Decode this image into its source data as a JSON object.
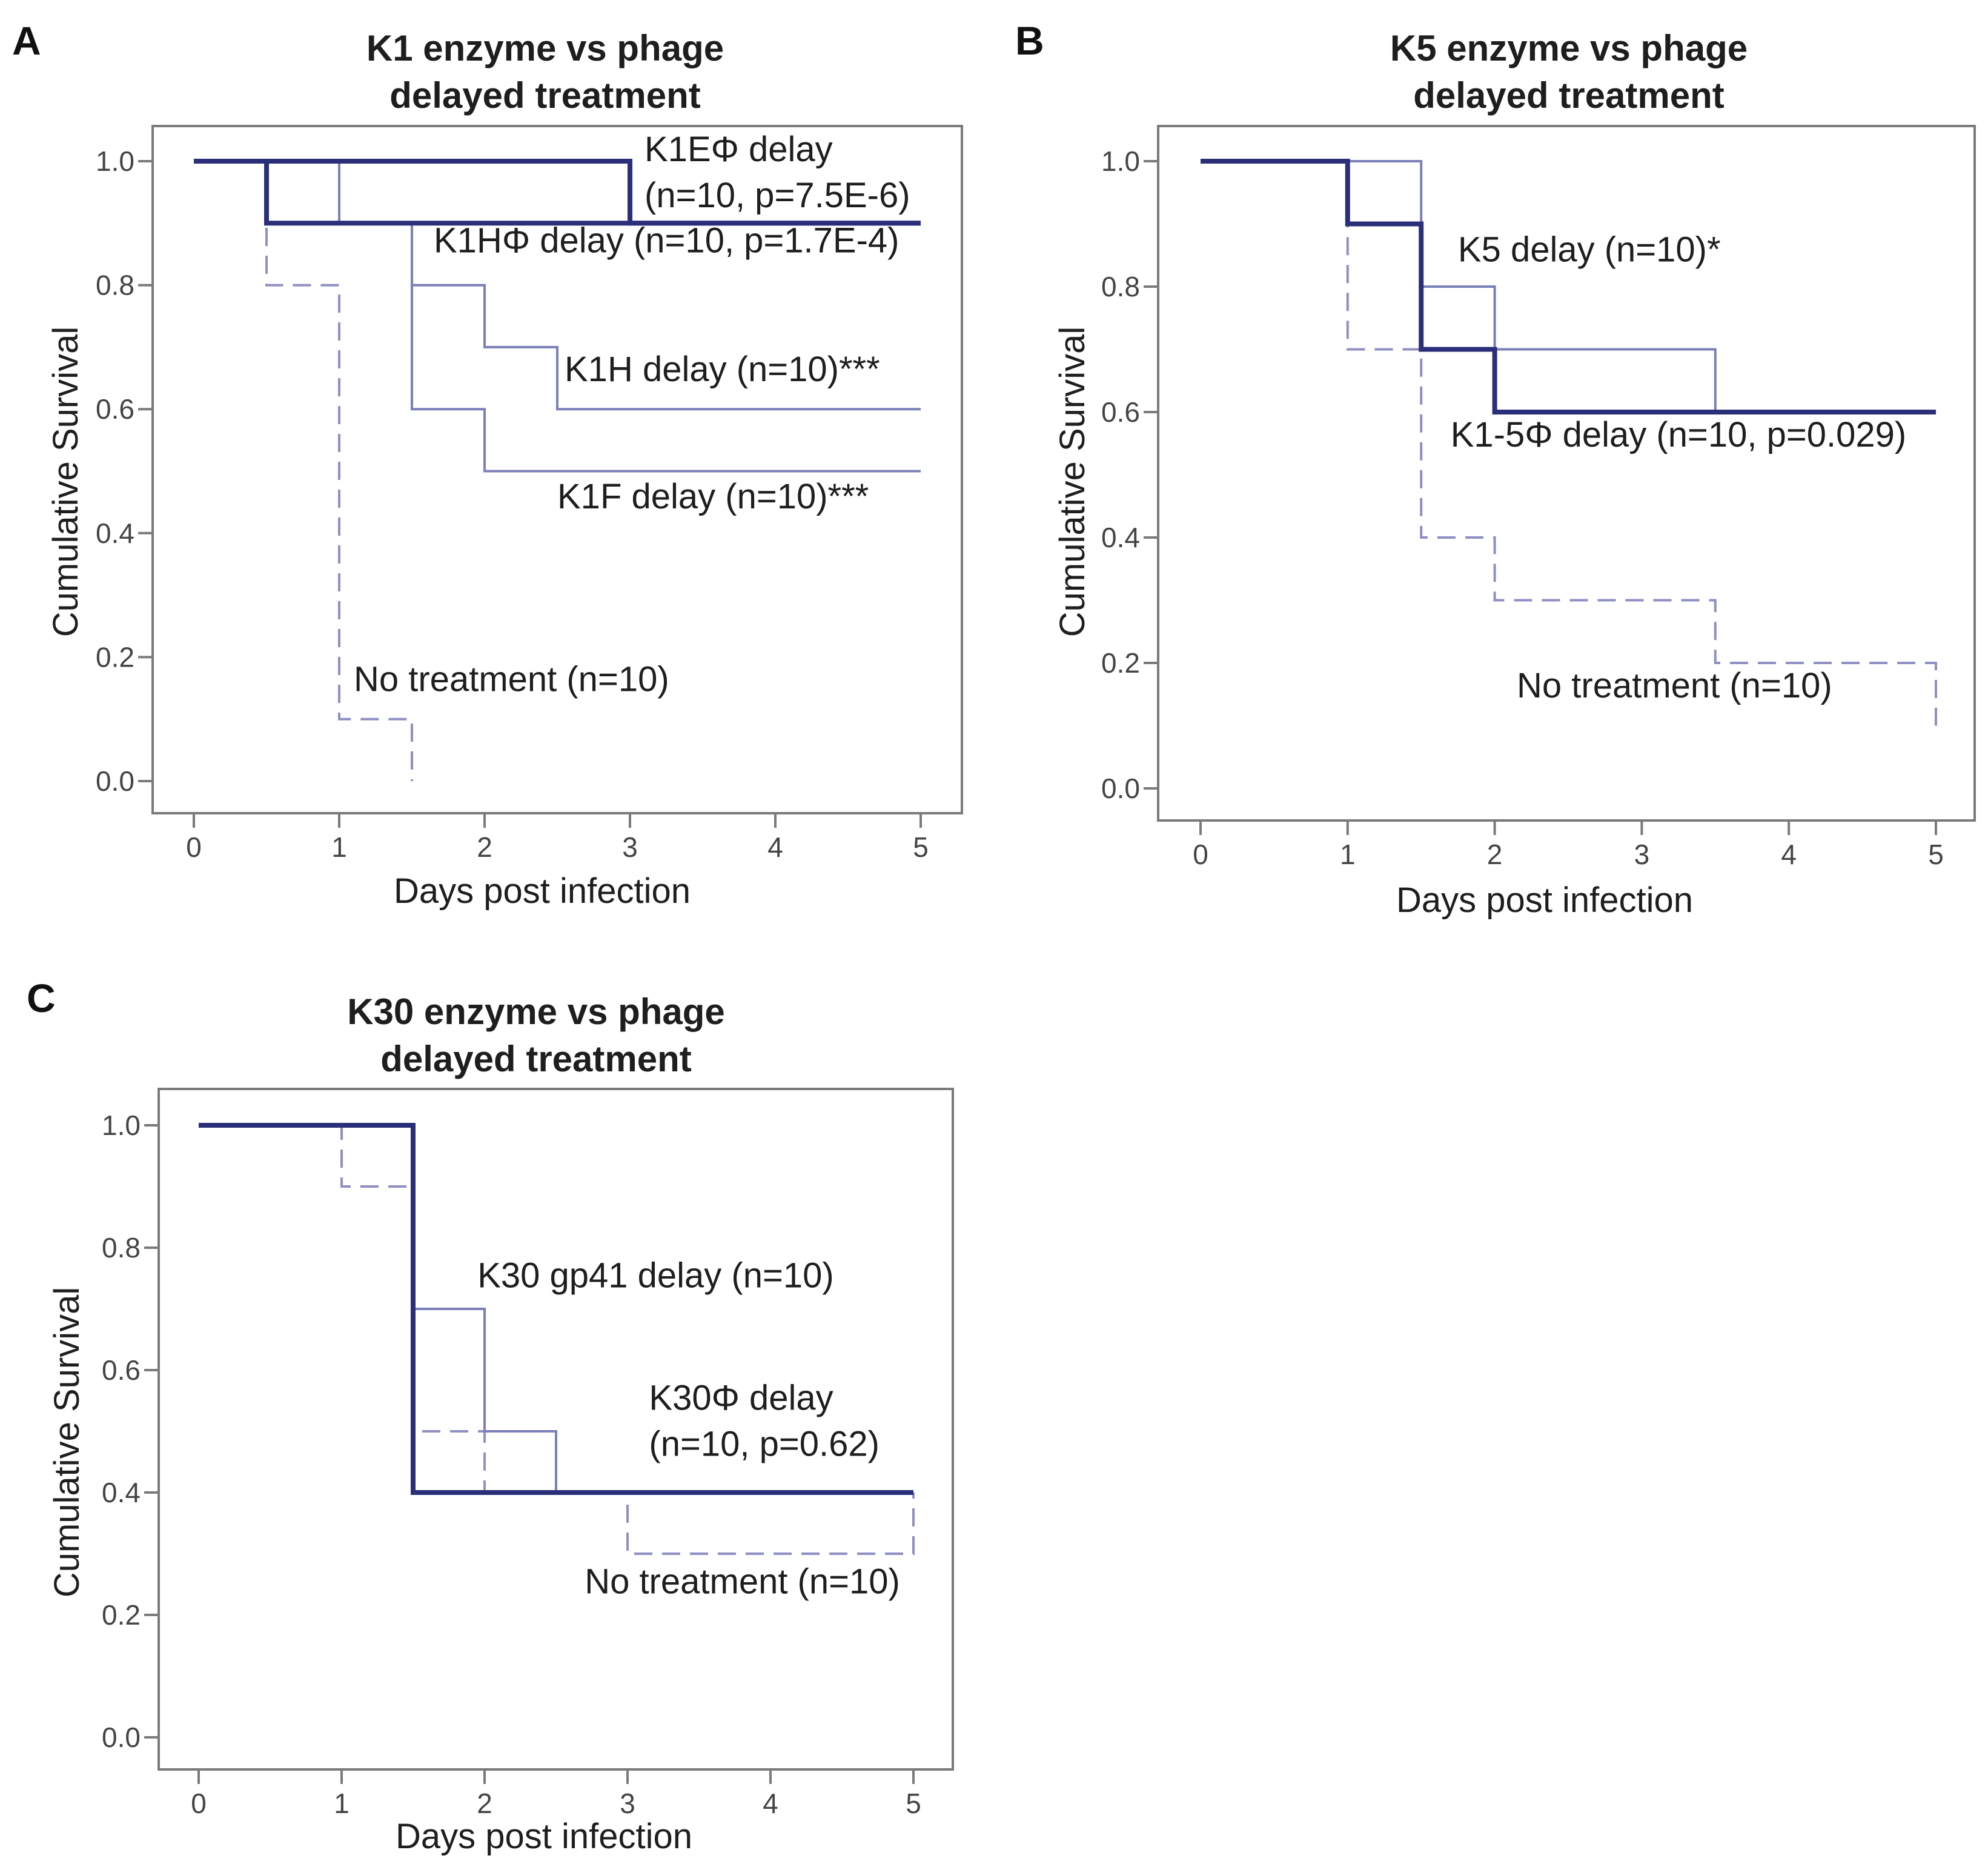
{
  "figure": {
    "panels": [
      {
        "letter": "A"
      },
      {
        "letter": "B"
      },
      {
        "letter": "C"
      }
    ]
  },
  "colors": {
    "strong": "#2b2f7a",
    "light": "#7b7fb8",
    "dashed": "#8e8fc2",
    "axis": "#7a7a7a",
    "text": "#1e1e1e"
  },
  "chart_data": [
    {
      "type": "line",
      "subtype": "kaplan-meier step",
      "title": [
        "K1 enzyme vs phage",
        "delayed treatment"
      ],
      "xlabel": "Days post infection",
      "ylabel": "Cumulative  Survival",
      "xlim": [
        0,
        5
      ],
      "ylim": [
        0,
        1
      ],
      "xticks": [
        "0",
        "1",
        "2",
        "3",
        "4",
        "5"
      ],
      "yticks": [
        "0.0",
        "0.2",
        "0.4",
        "0.6",
        "0.8",
        "1.0"
      ],
      "series": [
        {
          "name": "No treatment",
          "style": "dashed",
          "points": [
            [
              0,
              1
            ],
            [
              0.5,
              1
            ],
            [
              0.5,
              0.8
            ],
            [
              1,
              0.8
            ],
            [
              1,
              0.1
            ],
            [
              1.5,
              0.1
            ],
            [
              1.5,
              0
            ]
          ]
        },
        {
          "name": "K1F delay",
          "style": "light",
          "points": [
            [
              0,
              1
            ],
            [
              0.5,
              1
            ],
            [
              0.5,
              0.9
            ],
            [
              1.5,
              0.9
            ],
            [
              1.5,
              0.6
            ],
            [
              2,
              0.6
            ],
            [
              2,
              0.5
            ],
            [
              5,
              0.5
            ]
          ]
        },
        {
          "name": "K1H delay",
          "style": "light",
          "points": [
            [
              0,
              1
            ],
            [
              1,
              1
            ],
            [
              1,
              0.9
            ],
            [
              1.5,
              0.9
            ],
            [
              1.5,
              0.8
            ],
            [
              2,
              0.8
            ],
            [
              2,
              0.7
            ],
            [
              2.5,
              0.7
            ],
            [
              2.5,
              0.6
            ],
            [
              5,
              0.6
            ]
          ]
        },
        {
          "name": "K1HΦ delay",
          "style": "strong",
          "points": [
            [
              0,
              1
            ],
            [
              0.5,
              1
            ],
            [
              0.5,
              0.9
            ],
            [
              5,
              0.9
            ]
          ]
        },
        {
          "name": "K1EΦ delay",
          "style": "strong",
          "points": [
            [
              0,
              1
            ],
            [
              3,
              1
            ],
            [
              3,
              0.9
            ],
            [
              5,
              0.9
            ]
          ]
        }
      ],
      "annotations": [
        {
          "lines": [
            "K1EΦ delay",
            "(n=10,  p=7.5E-6)"
          ],
          "x": 3.1,
          "y": 1.0
        },
        {
          "lines": [
            "K1HΦ delay (n=10,  p=1.7E-4)"
          ],
          "x": 1.65,
          "y": 0.853
        },
        {
          "lines": [
            "K1H delay (n=10)***"
          ],
          "x": 2.55,
          "y": 0.645
        },
        {
          "lines": [
            "K1F delay (n=10)***"
          ],
          "x": 2.5,
          "y": 0.44
        },
        {
          "lines": [
            "No treatment (n=10)"
          ],
          "x": 1.1,
          "y": 0.145
        }
      ]
    },
    {
      "type": "line",
      "subtype": "kaplan-meier step",
      "title": [
        "K5 enzyme vs phage",
        "delayed treatment"
      ],
      "xlabel": "Days post infection",
      "ylabel": "Cumulative  Survival",
      "xlim": [
        0,
        5
      ],
      "ylim": [
        0,
        1
      ],
      "xticks": [
        "0",
        "1",
        "2",
        "3",
        "4",
        "5"
      ],
      "yticks": [
        "0.0",
        "0.2",
        "0.4",
        "0.6",
        "0.8",
        "1.0"
      ],
      "series": [
        {
          "name": "No treatment",
          "style": "dashed",
          "points": [
            [
              0,
              1
            ],
            [
              1,
              1
            ],
            [
              1,
              0.7
            ],
            [
              1.5,
              0.7
            ],
            [
              1.5,
              0.4
            ],
            [
              2,
              0.4
            ],
            [
              2,
              0.3
            ],
            [
              3.5,
              0.3
            ],
            [
              3.5,
              0.2
            ],
            [
              5,
              0.2
            ],
            [
              5,
              0.1
            ]
          ]
        },
        {
          "name": "K5 delay",
          "style": "light",
          "points": [
            [
              0,
              1
            ],
            [
              1.5,
              1
            ],
            [
              1.5,
              0.8
            ],
            [
              2,
              0.8
            ],
            [
              2,
              0.7
            ],
            [
              3.5,
              0.7
            ],
            [
              3.5,
              0.6
            ],
            [
              5,
              0.6
            ]
          ]
        },
        {
          "name": "K1-5Φ delay",
          "style": "strong",
          "points": [
            [
              0,
              1
            ],
            [
              1,
              1
            ],
            [
              1,
              0.9
            ],
            [
              1.5,
              0.9
            ],
            [
              1.5,
              0.7
            ],
            [
              2,
              0.7
            ],
            [
              2,
              0.6
            ],
            [
              5,
              0.6
            ]
          ]
        }
      ],
      "annotations": [
        {
          "lines": [
            "K5 delay (n=10)*"
          ],
          "x": 1.75,
          "y": 0.84
        },
        {
          "lines": [
            "K1-5Φ delay (n=10,  p=0.029)"
          ],
          "x": 1.7,
          "y": 0.545
        },
        {
          "lines": [
            "No treatment (n=10)"
          ],
          "x": 2.15,
          "y": 0.145
        }
      ]
    },
    {
      "type": "line",
      "subtype": "kaplan-meier step",
      "title": [
        "K30 enzyme vs phage",
        "delayed treatment"
      ],
      "xlabel": "Days post infection",
      "ylabel": "Cumulative  Survival",
      "xlim": [
        0,
        5
      ],
      "ylim": [
        0,
        1
      ],
      "xticks": [
        "0",
        "1",
        "2",
        "3",
        "4",
        "5"
      ],
      "yticks": [
        "0.0",
        "0.2",
        "0.4",
        "0.6",
        "0.8",
        "1.0"
      ],
      "series": [
        {
          "name": "No treatment",
          "style": "dashed",
          "points": [
            [
              0,
              1
            ],
            [
              1,
              1
            ],
            [
              1,
              0.9
            ],
            [
              1.5,
              0.9
            ],
            [
              1.5,
              0.5
            ],
            [
              2,
              0.5
            ],
            [
              2,
              0.4
            ],
            [
              3,
              0.4
            ],
            [
              3,
              0.3
            ],
            [
              5,
              0.3
            ],
            [
              5,
              0.4
            ]
          ]
        },
        {
          "name": "K30 gp41 delay",
          "style": "light",
          "points": [
            [
              0,
              1
            ],
            [
              1.5,
              1
            ],
            [
              1.5,
              0.7
            ],
            [
              2,
              0.7
            ],
            [
              2,
              0.5
            ],
            [
              2.5,
              0.5
            ],
            [
              2.5,
              0.4
            ],
            [
              5,
              0.4
            ]
          ]
        },
        {
          "name": "K30Φ delay",
          "style": "strong",
          "points": [
            [
              0,
              1
            ],
            [
              1.5,
              1
            ],
            [
              1.5,
              0.4
            ],
            [
              5,
              0.4
            ]
          ]
        }
      ],
      "annotations": [
        {
          "lines": [
            "K30 gp41 delay (n=10)"
          ],
          "x": 1.95,
          "y": 0.735
        },
        {
          "lines": [
            "K30Φ delay",
            "(n=10,  p=0.62)"
          ],
          "x": 3.15,
          "y": 0.535
        },
        {
          "lines": [
            "No treatment (n=10)"
          ],
          "x": 2.7,
          "y": 0.235
        }
      ]
    }
  ]
}
